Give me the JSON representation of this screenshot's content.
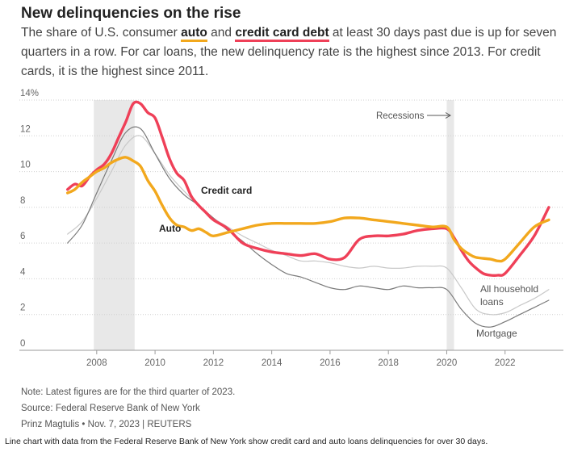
{
  "title": "New delinquencies on the rise",
  "subtitle": {
    "part1": "The share of U.S. consumer ",
    "kw_auto": "auto",
    "part2": " and ",
    "kw_cc": "credit card debt",
    "part3": " at least 30 days past due is up for seven quarters in a row. For car loans, the new delinquency rate is the highest since 2013. For credit cards, it is the highest since 2011."
  },
  "footer": {
    "note": "Note: Latest figures are for the third quarter of 2023.",
    "source": "Source: Federal Reserve Bank of New York",
    "credit": "Prinz Magtulis • Nov. 7, 2023 | REUTERS"
  },
  "caption": "Line chart with data from the Federal Reserve Bank of New York show credit card and auto loans delinquencies for over 30 days.",
  "colors": {
    "credit_card": "#ef4058",
    "auto": "#f2a81d",
    "all_household": "#c8c8c8",
    "mortgage": "#7a7a7a",
    "recession": "#e8e8e8",
    "grid": "#d0d0d0"
  },
  "chart_data": {
    "type": "line",
    "ylim": [
      0,
      14
    ],
    "xlim": [
      2006.4,
      2024.0
    ],
    "y_ticks": [
      0,
      2,
      4,
      6,
      8,
      10,
      12,
      14
    ],
    "y_tick_labels": [
      "0",
      "2",
      "4",
      "6",
      "8",
      "10",
      "12",
      "14%"
    ],
    "x_ticks": [
      2008,
      2010,
      2012,
      2014,
      2016,
      2018,
      2020,
      2022
    ],
    "x_tick_labels": [
      "2008",
      "2010",
      "2012",
      "2014",
      "2016",
      "2018",
      "2020",
      "2022"
    ],
    "grid": true,
    "recessions": [
      [
        2007.9,
        2009.3
      ],
      [
        2020.0,
        2020.25
      ]
    ],
    "recession_label": "Recessions",
    "series": [
      {
        "key": "all_household",
        "name": "All household loans",
        "x": [
          2007.0,
          2007.5,
          2008.0,
          2008.5,
          2009.0,
          2009.5,
          2010.0,
          2010.5,
          2011.0,
          2011.5,
          2012.0,
          2012.5,
          2013.0,
          2013.5,
          2014.0,
          2014.5,
          2015.0,
          2015.5,
          2016.0,
          2016.5,
          2017.0,
          2017.5,
          2018.0,
          2018.5,
          2019.0,
          2019.5,
          2020.0,
          2020.5,
          2021.0,
          2021.5,
          2022.0,
          2022.5,
          2023.0,
          2023.5
        ],
        "y": [
          6.5,
          7.2,
          8.5,
          10.0,
          11.5,
          12.0,
          11.0,
          9.8,
          8.9,
          8.1,
          7.4,
          6.9,
          6.4,
          6.0,
          5.6,
          5.3,
          5.0,
          5.0,
          4.9,
          4.7,
          4.6,
          4.7,
          4.6,
          4.6,
          4.7,
          4.7,
          4.6,
          3.5,
          2.3,
          2.0,
          2.1,
          2.5,
          2.9,
          3.4
        ]
      },
      {
        "key": "mortgage",
        "name": "Mortgage",
        "x": [
          2007.0,
          2007.5,
          2008.0,
          2008.5,
          2009.0,
          2009.5,
          2010.0,
          2010.5,
          2011.0,
          2011.5,
          2012.0,
          2012.5,
          2013.0,
          2013.5,
          2014.0,
          2014.5,
          2015.0,
          2015.5,
          2016.0,
          2016.5,
          2017.0,
          2017.5,
          2018.0,
          2018.5,
          2019.0,
          2019.5,
          2020.0,
          2020.5,
          2021.0,
          2021.5,
          2022.0,
          2022.5,
          2023.0,
          2023.5
        ],
        "y": [
          6.0,
          7.0,
          8.8,
          10.6,
          12.2,
          12.4,
          11.0,
          9.6,
          8.7,
          8.1,
          7.4,
          6.7,
          6.1,
          5.4,
          4.8,
          4.3,
          4.1,
          3.8,
          3.5,
          3.4,
          3.6,
          3.5,
          3.4,
          3.6,
          3.5,
          3.5,
          3.4,
          2.3,
          1.5,
          1.3,
          1.6,
          2.0,
          2.4,
          2.8
        ]
      },
      {
        "key": "credit_card",
        "name": "Credit card",
        "x": [
          2007.0,
          2007.25,
          2007.5,
          2007.75,
          2008.0,
          2008.25,
          2008.5,
          2008.75,
          2009.0,
          2009.25,
          2009.5,
          2009.75,
          2010.0,
          2010.25,
          2010.5,
          2010.75,
          2011.0,
          2011.25,
          2011.5,
          2011.75,
          2012.0,
          2012.5,
          2013.0,
          2013.5,
          2014.0,
          2014.5,
          2015.0,
          2015.5,
          2016.0,
          2016.5,
          2017.0,
          2017.5,
          2018.0,
          2018.5,
          2019.0,
          2019.5,
          2020.0,
          2020.25,
          2020.5,
          2020.75,
          2021.0,
          2021.25,
          2021.5,
          2021.75,
          2022.0,
          2022.5,
          2023.0,
          2023.5
        ],
        "y": [
          9.0,
          9.3,
          9.2,
          9.7,
          10.1,
          10.4,
          11.0,
          11.9,
          12.8,
          13.8,
          13.8,
          13.3,
          13.0,
          11.9,
          10.7,
          9.9,
          9.5,
          8.6,
          8.1,
          7.7,
          7.3,
          6.8,
          6.0,
          5.7,
          5.5,
          5.4,
          5.3,
          5.4,
          5.1,
          5.2,
          6.2,
          6.4,
          6.4,
          6.5,
          6.7,
          6.8,
          6.8,
          6.3,
          5.6,
          5.0,
          4.6,
          4.3,
          4.2,
          4.2,
          4.3,
          5.3,
          6.4,
          8.0
        ]
      },
      {
        "key": "auto",
        "name": "Auto",
        "x": [
          2007.0,
          2007.25,
          2007.5,
          2007.75,
          2008.0,
          2008.25,
          2008.5,
          2008.75,
          2009.0,
          2009.25,
          2009.5,
          2009.75,
          2010.0,
          2010.25,
          2010.5,
          2010.75,
          2011.0,
          2011.25,
          2011.5,
          2011.75,
          2012.0,
          2012.5,
          2013.0,
          2013.5,
          2014.0,
          2014.5,
          2015.0,
          2015.5,
          2016.0,
          2016.5,
          2017.0,
          2017.5,
          2018.0,
          2018.5,
          2019.0,
          2019.5,
          2020.0,
          2020.25,
          2020.5,
          2020.75,
          2021.0,
          2021.5,
          2021.75,
          2022.0,
          2022.5,
          2023.0,
          2023.5
        ],
        "y": [
          8.8,
          9.0,
          9.4,
          9.7,
          10.0,
          10.2,
          10.5,
          10.7,
          10.8,
          10.6,
          10.3,
          9.5,
          8.9,
          8.1,
          7.4,
          7.0,
          6.9,
          6.7,
          6.8,
          6.6,
          6.4,
          6.6,
          6.8,
          7.0,
          7.1,
          7.1,
          7.1,
          7.1,
          7.2,
          7.4,
          7.4,
          7.3,
          7.2,
          7.1,
          7.0,
          6.9,
          6.9,
          6.2,
          5.7,
          5.4,
          5.2,
          5.1,
          5.0,
          5.1,
          6.0,
          6.9,
          7.3
        ]
      }
    ],
    "annotations": [
      {
        "text": "Credit card",
        "series": "credit_card"
      },
      {
        "text": "Auto",
        "series": "auto"
      },
      {
        "text": "All household",
        "series": "all_household"
      },
      {
        "text": "loans",
        "series": "all_household"
      },
      {
        "text": "Mortgage",
        "series": "mortgage"
      }
    ]
  }
}
